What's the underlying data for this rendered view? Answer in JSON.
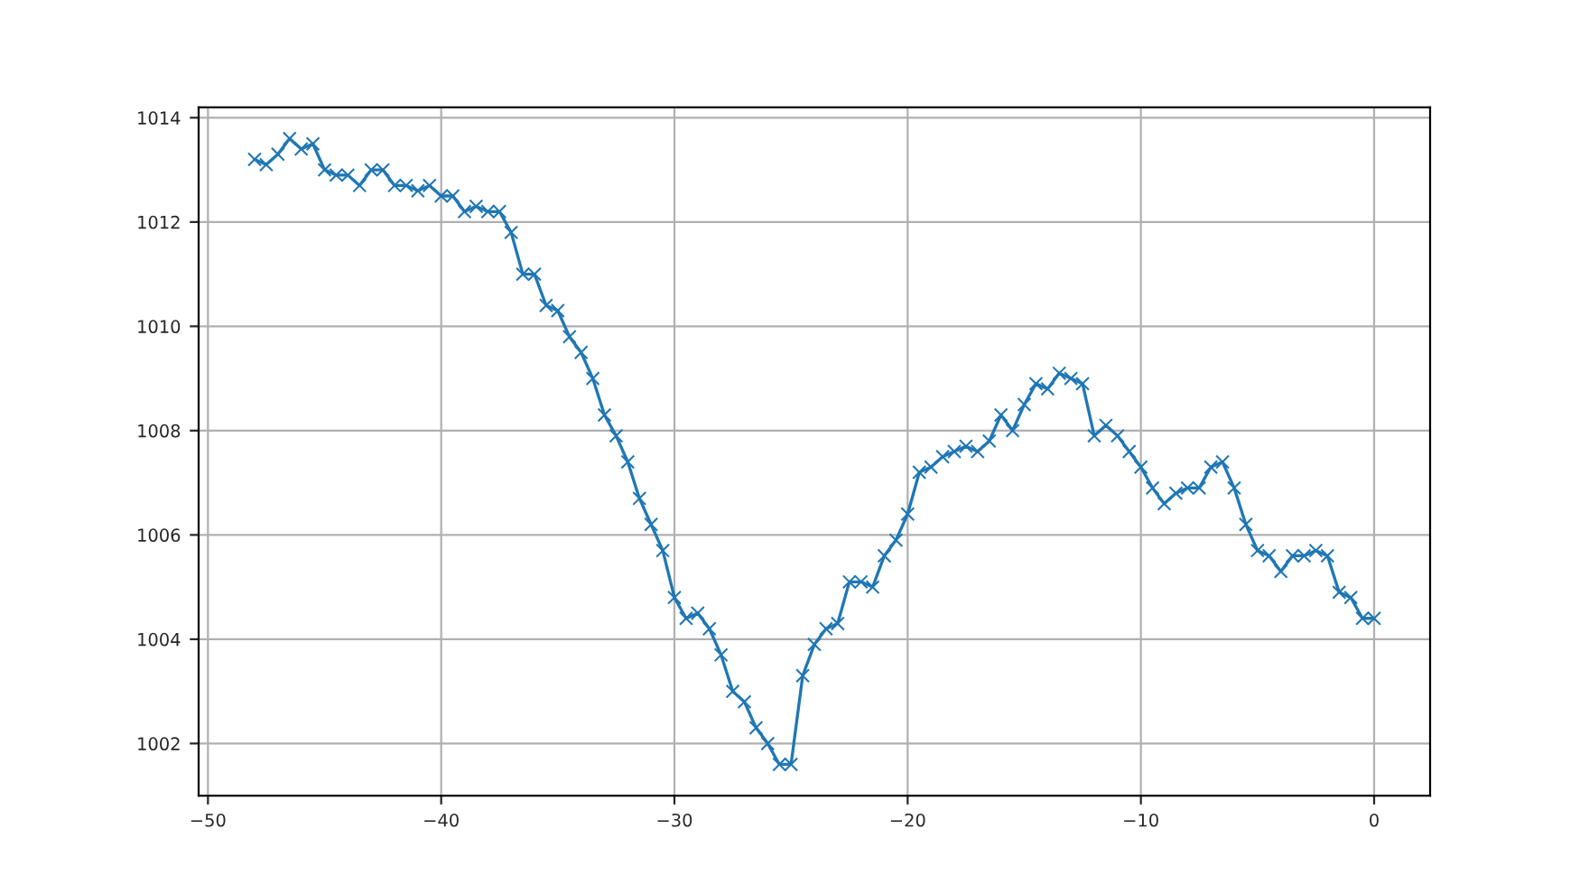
{
  "chart_data": {
    "type": "line",
    "marker": "cross",
    "grid": true,
    "color": "#1f77b4",
    "x": [
      -48,
      -47.5,
      -47,
      -46.5,
      -46,
      -45.5,
      -45,
      -44.5,
      -44,
      -43.5,
      -43,
      -42.5,
      -42,
      -41.5,
      -41,
      -40.5,
      -40,
      -39.5,
      -39,
      -38.5,
      -38,
      -37.5,
      -37,
      -36.5,
      -36,
      -35.5,
      -35,
      -34.5,
      -34,
      -33.5,
      -33,
      -32.5,
      -32,
      -31.5,
      -31,
      -30.5,
      -30,
      -29.5,
      -29,
      -28.5,
      -28,
      -27.5,
      -27,
      -26.5,
      -26,
      -25.5,
      -25,
      -24.5,
      -24,
      -23.5,
      -23,
      -22.5,
      -22,
      -21.5,
      -21,
      -20.5,
      -20,
      -19.5,
      -19,
      -18.5,
      -18,
      -17.5,
      -17,
      -16.5,
      -16,
      -15.5,
      -15,
      -14.5,
      -14,
      -13.5,
      -13,
      -12.5,
      -12,
      -11.5,
      -11,
      -10.5,
      -10,
      -9.5,
      -9,
      -8.5,
      -8,
      -7.5,
      -7,
      -6.5,
      -6,
      -5.5,
      -5,
      -4.5,
      -4,
      -3.5,
      -3,
      -2.5,
      -2,
      -1.5,
      -1,
      -0.5,
      0
    ],
    "values": [
      1013.2,
      1013.1,
      1013.3,
      1013.6,
      1013.4,
      1013.5,
      1013.0,
      1012.9,
      1012.9,
      1012.7,
      1013.0,
      1013.0,
      1012.7,
      1012.7,
      1012.6,
      1012.7,
      1012.5,
      1012.5,
      1012.2,
      1012.3,
      1012.2,
      1012.2,
      1011.8,
      1011.0,
      1011.0,
      1010.4,
      1010.3,
      1009.8,
      1009.5,
      1009.0,
      1008.3,
      1007.9,
      1007.4,
      1006.7,
      1006.2,
      1005.7,
      1004.8,
      1004.4,
      1004.5,
      1004.2,
      1003.7,
      1003.0,
      1002.8,
      1002.3,
      1002.0,
      1001.6,
      1001.6,
      1003.3,
      1003.9,
      1004.2,
      1004.3,
      1005.1,
      1005.1,
      1005.0,
      1005.6,
      1005.9,
      1006.4,
      1007.2,
      1007.3,
      1007.5,
      1007.6,
      1007.7,
      1007.6,
      1007.8,
      1008.3,
      1008.0,
      1008.5,
      1008.9,
      1008.8,
      1009.1,
      1009.0,
      1008.9,
      1007.9,
      1008.1,
      1007.9,
      1007.6,
      1007.3,
      1006.9,
      1006.6,
      1006.8,
      1006.9,
      1006.9,
      1007.3,
      1007.4,
      1006.9,
      1006.2,
      1005.7,
      1005.6,
      1005.3,
      1005.6,
      1005.6,
      1005.7,
      1005.6,
      1004.9,
      1004.8,
      1004.4,
      1004.4
    ],
    "xlim": [
      -50.4,
      2.4
    ],
    "ylim": [
      1001.0,
      1014.2
    ],
    "xticks": [
      {
        "value": -50,
        "label": "−50"
      },
      {
        "value": -40,
        "label": "−40"
      },
      {
        "value": -30,
        "label": "−30"
      },
      {
        "value": -20,
        "label": "−20"
      },
      {
        "value": -10,
        "label": "−10"
      },
      0
    ],
    "yticks": [
      1002,
      1004,
      1006,
      1008,
      1010,
      1012,
      1014
    ]
  }
}
